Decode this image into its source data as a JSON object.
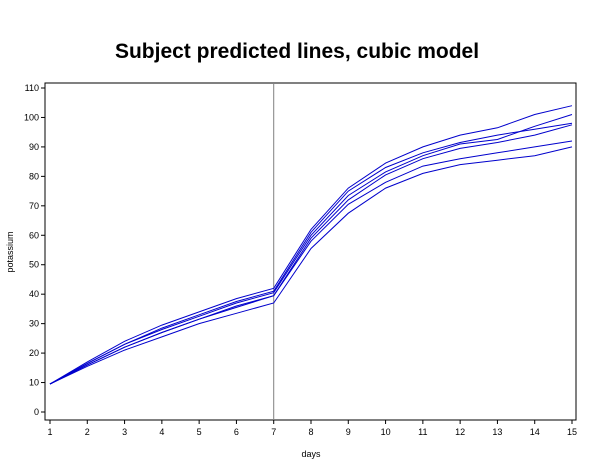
{
  "chart_data": {
    "type": "line",
    "title": "Subject predicted lines, cubic model",
    "xlabel": "days",
    "ylabel": "potassium",
    "xlim": [
      1,
      15
    ],
    "ylim": [
      0,
      110
    ],
    "x_ticks": [
      1,
      2,
      3,
      4,
      5,
      6,
      7,
      8,
      9,
      10,
      11,
      12,
      13,
      14,
      15
    ],
    "y_ticks": [
      0,
      10,
      20,
      30,
      40,
      50,
      60,
      70,
      80,
      90,
      100,
      110
    ],
    "reference_line_x": 7,
    "grid": false,
    "line_color": "#0000cc",
    "x": [
      1,
      2,
      3,
      4,
      5,
      6,
      7,
      8,
      9,
      10,
      11,
      12,
      13,
      14,
      15
    ],
    "series": [
      {
        "values": [
          9.5,
          17.0,
          24.0,
          29.5,
          34.0,
          38.5,
          42.0,
          62.0,
          76.0,
          84.5,
          90.0,
          94.0,
          96.5,
          101.0,
          104.0
        ]
      },
      {
        "values": [
          9.5,
          16.5,
          23.0,
          28.5,
          33.0,
          37.5,
          41.0,
          61.0,
          75.0,
          83.0,
          88.0,
          91.5,
          94.0,
          96.0,
          98.0
        ]
      },
      {
        "values": [
          9.5,
          16.5,
          23.0,
          28.0,
          32.5,
          37.0,
          40.5,
          60.0,
          73.5,
          81.5,
          87.0,
          91.0,
          92.5,
          97.0,
          101.0
        ]
      },
      {
        "values": [
          9.5,
          16.0,
          22.0,
          27.0,
          31.5,
          36.0,
          39.5,
          59.0,
          72.0,
          80.5,
          86.0,
          89.5,
          91.5,
          94.0,
          97.5
        ]
      },
      {
        "values": [
          9.5,
          16.0,
          22.0,
          27.0,
          31.5,
          35.5,
          39.5,
          58.0,
          70.5,
          78.0,
          83.5,
          86.0,
          88.0,
          90.0,
          92.0
        ]
      },
      {
        "values": [
          9.5,
          15.5,
          21.0,
          25.5,
          30.0,
          33.5,
          37.0,
          55.5,
          67.5,
          76.0,
          81.0,
          84.0,
          85.5,
          87.0,
          90.0
        ]
      }
    ]
  }
}
